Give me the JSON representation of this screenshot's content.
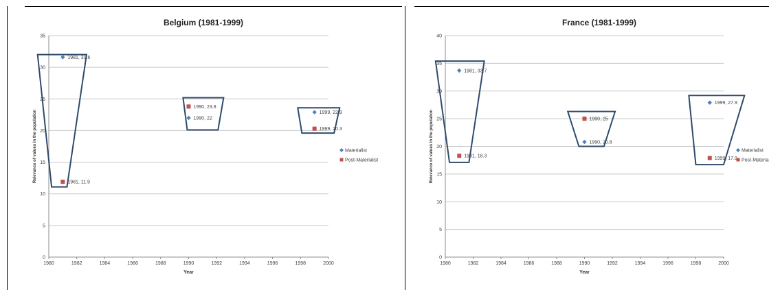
{
  "colors": {
    "materialist": "#4f81bd",
    "post_materialist": "#c0504d",
    "annotation_box": "#2e4a6b"
  },
  "chart_data": [
    {
      "type": "scatter",
      "title": "Belgium (1981-1999)",
      "xlabel": "Year",
      "ylabel": "Relevance of values in the population",
      "xlim": [
        1980,
        2000
      ],
      "ylim": [
        0,
        35
      ],
      "xticks": [
        "1980",
        "1982",
        "1984",
        "1986",
        "1988",
        "1990",
        "1992",
        "1994",
        "1996",
        "1998",
        "2000"
      ],
      "yticks": [
        "0",
        "5",
        "10",
        "15",
        "20",
        "25",
        "30",
        "35"
      ],
      "grid": true,
      "legend": "right",
      "series": [
        {
          "name": "Materialist",
          "marker": "diamond",
          "points": [
            {
              "x": 1981,
              "y": 31.6,
              "label": "1981, 31.6"
            },
            {
              "x": 1990,
              "y": 22,
              "label": "1990, 22"
            },
            {
              "x": 1999,
              "y": 22.9,
              "label": "1999, 22.9"
            }
          ]
        },
        {
          "name": "Post-Materialist",
          "marker": "square",
          "points": [
            {
              "x": 1981,
              "y": 11.9,
              "label": "1981, 11.9"
            },
            {
              "x": 1990,
              "y": 23.8,
              "label": "1990, 23.8"
            },
            {
              "x": 1999,
              "y": 20.3,
              "label": "1999, 20.3"
            }
          ]
        }
      ],
      "annotations": [
        {
          "shape": "trapezoid",
          "x": [
            1979.2,
            1982.7,
            1981.3,
            1980.2
          ],
          "y_top": 32.0,
          "y_bottom": 11.1
        },
        {
          "shape": "trapezoid",
          "x": [
            1989.6,
            1992.5,
            1992.1,
            1989.9
          ],
          "y_top": 25.2,
          "y_bottom": 20.1
        },
        {
          "shape": "trapezoid",
          "x": [
            1997.8,
            2000.8,
            2000.4,
            1998.1
          ],
          "y_top": 23.6,
          "y_bottom": 19.6
        }
      ]
    },
    {
      "type": "scatter",
      "title": "France (1981-1999)",
      "xlabel": "Year",
      "ylabel": "Relevance of values in the population",
      "xlim": [
        1980,
        2000
      ],
      "ylim": [
        0,
        40
      ],
      "xticks": [
        "1980",
        "1982",
        "1984",
        "1986",
        "1988",
        "1990",
        "1992",
        "1994",
        "1996",
        "1998",
        "2000"
      ],
      "yticks": [
        "0",
        "5",
        "10",
        "15",
        "20",
        "25",
        "30",
        "35",
        "40"
      ],
      "grid": true,
      "legend": "right",
      "series": [
        {
          "name": "Materialist",
          "marker": "diamond",
          "points": [
            {
              "x": 1981,
              "y": 33.7,
              "label": "1981, 33.7"
            },
            {
              "x": 1990,
              "y": 20.8,
              "label": "1990, 20.8"
            },
            {
              "x": 1999,
              "y": 27.9,
              "label": "1999, 27.9"
            }
          ]
        },
        {
          "name": "Post-Materialist",
          "marker": "square",
          "points": [
            {
              "x": 1981,
              "y": 18.3,
              "label": "1981, 18.3"
            },
            {
              "x": 1990,
              "y": 25,
              "label": "1990, 25"
            },
            {
              "x": 1999,
              "y": 17.9,
              "label": "1999, 17.9"
            }
          ]
        }
      ],
      "annotations": [
        {
          "shape": "trapezoid",
          "x": [
            1979.3,
            1982.8,
            1981.7,
            1980.3
          ],
          "y_top": 35.4,
          "y_bottom": 17.1
        },
        {
          "shape": "trapezoid",
          "x": [
            1988.8,
            1992.2,
            1991.4,
            1989.6
          ],
          "y_top": 26.3,
          "y_bottom": 20.0
        },
        {
          "shape": "trapezoid",
          "x": [
            1997.5,
            2001.5,
            2000.0,
            1998.0
          ],
          "y_top": 29.2,
          "y_bottom": 16.7
        }
      ]
    }
  ]
}
